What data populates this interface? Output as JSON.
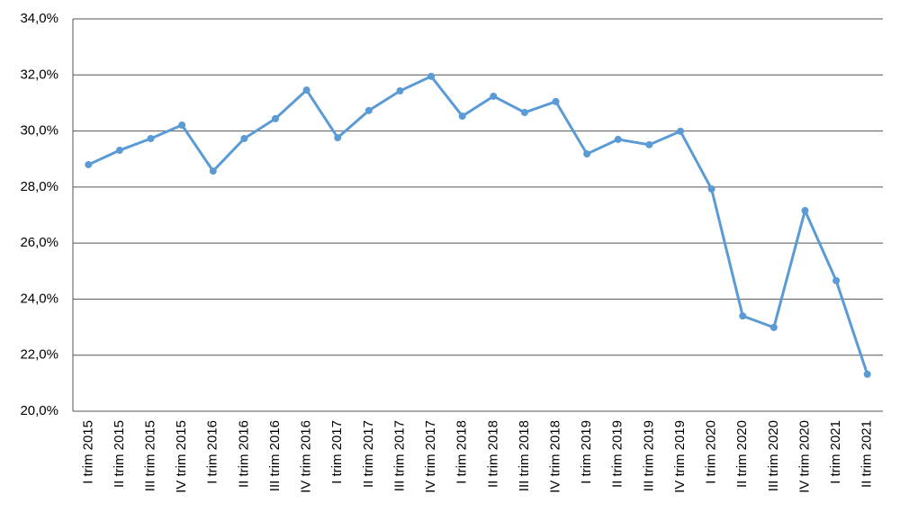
{
  "chart_data": {
    "type": "line",
    "categories": [
      "I trim 2015",
      "II trim 2015",
      "III trim 2015",
      "IV trim 2015",
      "I trim 2016",
      "II trim 2016",
      "III trim 2016",
      "IV trim 2016",
      "I trim 2017",
      "II trim 2017",
      "III trim 2017",
      "IV trim 2017",
      "I trim 2018",
      "II trim 2018",
      "III trim 2018",
      "IV trim 2018",
      "I trim 2019",
      "II trim 2019",
      "III trim 2019",
      "IV trim 2019",
      "I trim 2020",
      "II trim 2020",
      "III trim 2020",
      "IV trim 2020",
      "I trim 2021",
      "II trim 2021"
    ],
    "values": [
      28.8,
      29.31,
      29.73,
      30.21,
      28.57,
      29.73,
      30.44,
      31.46,
      29.76,
      30.73,
      31.43,
      31.95,
      30.53,
      31.24,
      30.66,
      31.05,
      29.18,
      29.7,
      29.51,
      29.99,
      27.93,
      23.4,
      22.99,
      27.16,
      24.66,
      21.32
    ],
    "color": "#5b9bd5",
    "ylim": [
      20,
      34
    ],
    "yticks": [
      {
        "value": 20,
        "label": "20,0%"
      },
      {
        "value": 22,
        "label": "22,0%"
      },
      {
        "value": 24,
        "label": "24,0%"
      },
      {
        "value": 26,
        "label": "26,0%"
      },
      {
        "value": 28,
        "label": "28,0%"
      },
      {
        "value": 30,
        "label": "30,0%"
      },
      {
        "value": 32,
        "label": "32,0%"
      },
      {
        "value": 34,
        "label": "34,0%"
      }
    ],
    "grid": true
  }
}
